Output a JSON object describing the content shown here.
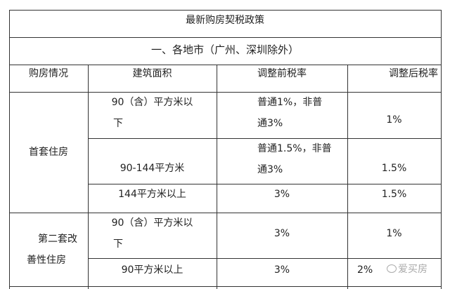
{
  "title": "最新购房契税政策",
  "subtitle": "一、各地市（广州、深圳除外）",
  "headers": [
    "购房情况",
    "建筑面积",
    "调整前税率",
    "调整后税率"
  ],
  "groups": [
    {
      "label_lines": [
        "首套住房"
      ],
      "rows": [
        {
          "area_lines": [
            "90（含）平方米以",
            "下"
          ],
          "before_lines": [
            "普通1%，非普",
            "通3%"
          ],
          "after": "1%"
        },
        {
          "area_lines": [
            "90-144平方米"
          ],
          "before_lines": [
            "普通1.5%，非普",
            "通3%"
          ],
          "after": "1.5%"
        },
        {
          "area_lines": [
            "144平方米以上"
          ],
          "before_lines": [
            "3%"
          ],
          "after": "1.5%"
        }
      ]
    },
    {
      "label_lines": [
        "第二套改",
        "善性住房"
      ],
      "rows": [
        {
          "area_lines": [
            "90（含）平方米以",
            "下"
          ],
          "before_lines": [
            "3%"
          ],
          "after": "1%"
        },
        {
          "area_lines": [
            "90平方米以上"
          ],
          "before_lines": [
            "3%"
          ],
          "after": "2%"
        }
      ]
    }
  ],
  "watermark": "爱买房"
}
